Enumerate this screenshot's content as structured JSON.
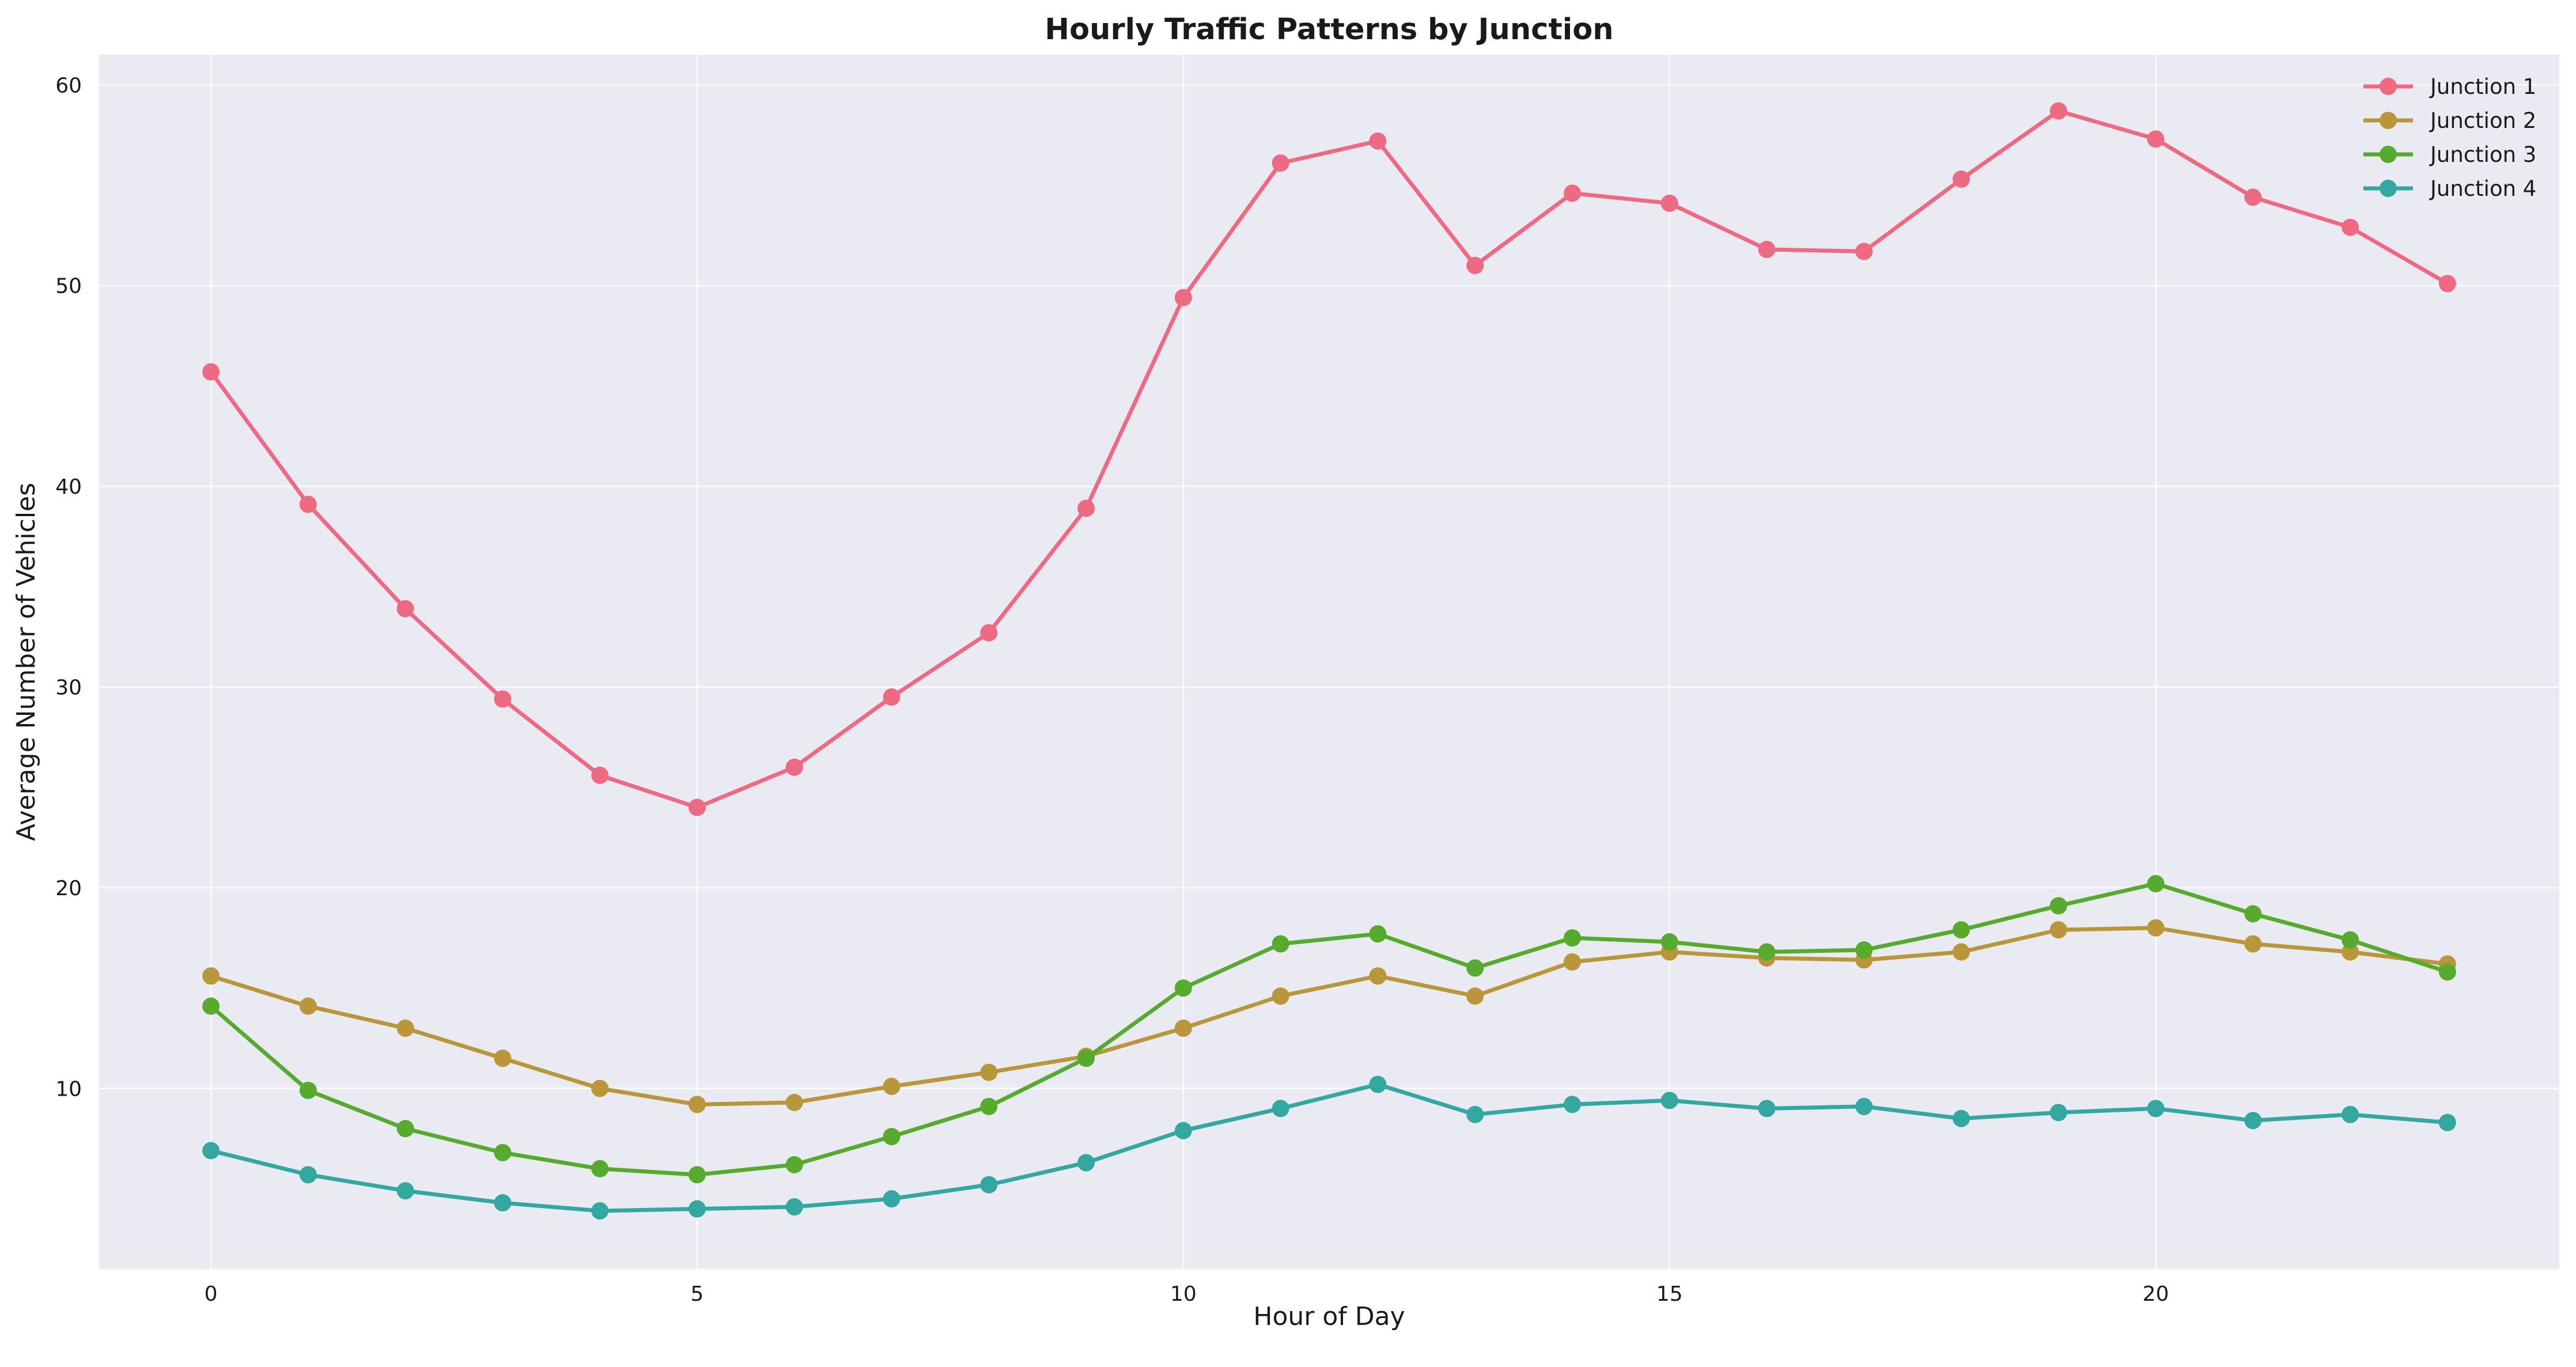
{
  "chart_data": {
    "type": "line",
    "title": "Hourly Traffic Patterns by Junction",
    "xlabel": "Hour of Day",
    "ylabel": "Average Number of Vehicles",
    "xlim": [
      -1.15,
      24.15
    ],
    "ylim": [
      1.0,
      61.5
    ],
    "xticks": [
      0,
      5,
      10,
      15,
      20
    ],
    "yticks": [
      10,
      20,
      30,
      40,
      50,
      60
    ],
    "grid": true,
    "legend_position": "top-right",
    "background": "#eaeaf2",
    "x": [
      0,
      1,
      2,
      3,
      4,
      5,
      6,
      7,
      8,
      9,
      10,
      11,
      12,
      13,
      14,
      15,
      16,
      17,
      18,
      19,
      20,
      21,
      22,
      23
    ],
    "series": [
      {
        "name": "Junction 1",
        "color": "#ee6a82",
        "values": [
          45.7,
          39.1,
          33.9,
          29.4,
          25.6,
          24.0,
          26.0,
          29.5,
          32.7,
          38.9,
          49.4,
          56.1,
          57.2,
          51.0,
          54.6,
          54.1,
          51.8,
          51.7,
          55.3,
          58.7,
          57.3,
          54.4,
          52.9,
          50.1
        ]
      },
      {
        "name": "Junction 2",
        "color": "#b9963a",
        "values": [
          15.6,
          14.1,
          13.0,
          11.5,
          10.0,
          9.2,
          9.3,
          10.1,
          10.8,
          11.6,
          13.0,
          14.6,
          15.6,
          14.6,
          16.3,
          16.8,
          16.5,
          16.4,
          16.8,
          17.9,
          18.0,
          17.2,
          16.8,
          16.2
        ]
      },
      {
        "name": "Junction 3",
        "color": "#56ab2f",
        "values": [
          14.1,
          9.9,
          8.0,
          6.8,
          6.0,
          5.7,
          6.2,
          7.6,
          9.1,
          11.5,
          15.0,
          17.2,
          17.7,
          16.0,
          17.5,
          17.3,
          16.8,
          16.9,
          17.9,
          19.1,
          20.2,
          18.7,
          17.4,
          15.8
        ]
      },
      {
        "name": "Junction 4",
        "color": "#33a8a0",
        "values": [
          6.9,
          5.7,
          4.9,
          4.3,
          3.9,
          4.0,
          4.1,
          4.5,
          5.2,
          6.3,
          7.9,
          9.0,
          10.2,
          8.7,
          9.2,
          9.4,
          9.0,
          9.1,
          8.5,
          8.8,
          9.0,
          8.4,
          8.7,
          8.3
        ]
      }
    ]
  }
}
